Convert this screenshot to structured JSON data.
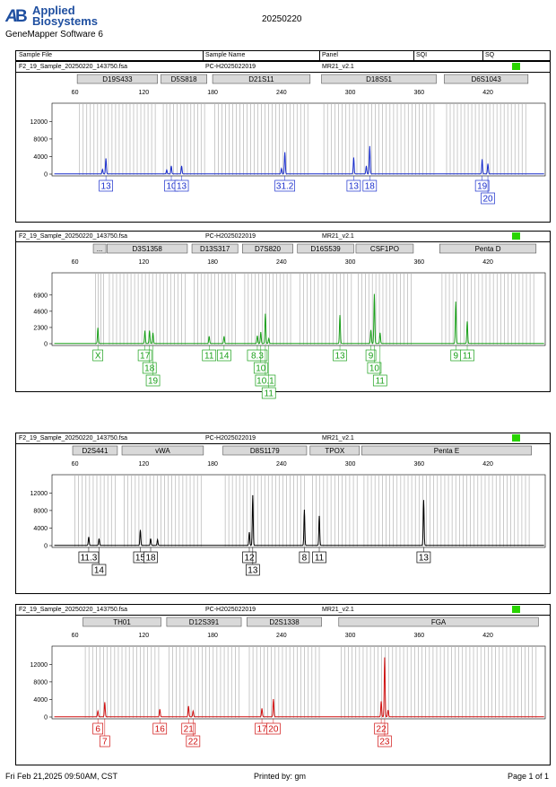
{
  "header": {
    "brand_line1": "Applied",
    "brand_line2": "Biosystems",
    "date": "20250220",
    "software": "GeneMapper Software 6"
  },
  "columns": {
    "sample_file": "Sample File",
    "sample_name": "Sample Name",
    "panel": "Panel",
    "sqi": "SQI",
    "sq": "SQ"
  },
  "footer": {
    "datetime": "Fri Feb 21,2025 09:50AM, CST",
    "printed_by": "Printed by: gm",
    "page": "Page 1 of 1"
  },
  "colors": {
    "blue": "#1a2ecc",
    "green": "#1aa01a",
    "black": "#000000",
    "red": "#d01010",
    "quality": "#29d400"
  },
  "chart_data": [
    {
      "type": "line",
      "dye": "blue",
      "sample_file": "F2_19_Sample_20250220_143750.fsa",
      "sample_name": "PC-H2025022019",
      "panel": "MR21_v2.1",
      "xlim": [
        40,
        470
      ],
      "xticks": [
        60,
        120,
        180,
        240,
        300,
        360,
        420
      ],
      "ylim": [
        0,
        13500
      ],
      "yticks": [
        0,
        4000,
        8000,
        12000
      ],
      "markers": [
        {
          "name": "D19S433",
          "x0": 62,
          "x1": 132
        },
        {
          "name": "D5S818",
          "x0": 135,
          "x1": 175
        },
        {
          "name": "D21S11",
          "x0": 180,
          "x1": 265
        },
        {
          "name": "D18S51",
          "x0": 275,
          "x1": 375
        },
        {
          "name": "D6S1043",
          "x0": 382,
          "x1": 455
        }
      ],
      "peaks": [
        {
          "x": 84,
          "h": 1000
        },
        {
          "x": 87,
          "h": 3500
        },
        {
          "x": 140,
          "h": 900
        },
        {
          "x": 144,
          "h": 1800
        },
        {
          "x": 153,
          "h": 1800
        },
        {
          "x": 240,
          "h": 1200
        },
        {
          "x": 243,
          "h": 4900
        },
        {
          "x": 303,
          "h": 3700
        },
        {
          "x": 314,
          "h": 1800
        },
        {
          "x": 317,
          "h": 6300
        },
        {
          "x": 415,
          "h": 3300
        },
        {
          "x": 420,
          "h": 2300
        }
      ],
      "alleles": [
        {
          "x": 87,
          "row": 0,
          "label": "13"
        },
        {
          "x": 144,
          "row": 0,
          "label": "10"
        },
        {
          "x": 153,
          "row": 0,
          "label": "13"
        },
        {
          "x": 243,
          "row": 0,
          "label": "31.2"
        },
        {
          "x": 303,
          "row": 0,
          "label": "13"
        },
        {
          "x": 317,
          "row": 0,
          "label": "18"
        },
        {
          "x": 415,
          "row": 0,
          "label": "19"
        },
        {
          "x": 420,
          "row": 1,
          "label": "20"
        }
      ]
    },
    {
      "type": "line",
      "dye": "green",
      "sample_file": "F2_19_Sample_20250220_143750.fsa",
      "sample_name": "PC-H2025022019",
      "panel": "MR21_v2.1",
      "xlim": [
        40,
        470
      ],
      "xticks": [
        60,
        120,
        180,
        240,
        300,
        360,
        420
      ],
      "ylim": [
        0,
        8400
      ],
      "yticks": [
        0,
        2300,
        4600,
        6900
      ],
      "markers": [
        {
          "name": "...",
          "x0": 76,
          "x1": 87
        },
        {
          "name": "D3S1358",
          "x0": 88,
          "x1": 158
        },
        {
          "name": "D13S317",
          "x0": 162,
          "x1": 202
        },
        {
          "name": "D7S820",
          "x0": 206,
          "x1": 250
        },
        {
          "name": "D16S539",
          "x0": 254,
          "x1": 303
        },
        {
          "name": "CSF1PO",
          "x0": 305,
          "x1": 355
        },
        {
          "name": "Penta D",
          "x0": 378,
          "x1": 462
        }
      ],
      "peaks": [
        {
          "x": 80,
          "h": 2200
        },
        {
          "x": 121,
          "h": 1800
        },
        {
          "x": 125,
          "h": 1800
        },
        {
          "x": 128,
          "h": 1500
        },
        {
          "x": 177,
          "h": 1000
        },
        {
          "x": 190,
          "h": 1000
        },
        {
          "x": 219,
          "h": 1100
        },
        {
          "x": 222,
          "h": 1600
        },
        {
          "x": 226,
          "h": 4200
        },
        {
          "x": 229,
          "h": 700
        },
        {
          "x": 291,
          "h": 4000
        },
        {
          "x": 318,
          "h": 1900
        },
        {
          "x": 321,
          "h": 7000
        },
        {
          "x": 326,
          "h": 1500
        },
        {
          "x": 392,
          "h": 5900
        },
        {
          "x": 402,
          "h": 3100
        }
      ],
      "alleles": [
        {
          "x": 80,
          "row": 0,
          "label": "X"
        },
        {
          "x": 121,
          "row": 0,
          "label": "17"
        },
        {
          "x": 125,
          "row": 1,
          "label": "18"
        },
        {
          "x": 128,
          "row": 2,
          "label": "19"
        },
        {
          "x": 177,
          "row": 0,
          "label": "11"
        },
        {
          "x": 190,
          "row": 0,
          "label": "14"
        },
        {
          "x": 219,
          "row": 0,
          "label": "8.3"
        },
        {
          "x": 222,
          "row": 1,
          "label": "10"
        },
        {
          "x": 226,
          "row": 2,
          "label": "10.1"
        },
        {
          "x": 229,
          "row": 3,
          "label": "11"
        },
        {
          "x": 291,
          "row": 0,
          "label": "13"
        },
        {
          "x": 318,
          "row": 0,
          "label": "9"
        },
        {
          "x": 321,
          "row": 1,
          "label": "10"
        },
        {
          "x": 326,
          "row": 2,
          "label": "11"
        },
        {
          "x": 392,
          "row": 0,
          "label": "9"
        },
        {
          "x": 402,
          "row": 0,
          "label": "11"
        }
      ]
    },
    {
      "type": "line",
      "dye": "black",
      "sample_file": "F2_19_Sample_20250220_143750.fsa",
      "sample_name": "PC-H2025022019",
      "panel": "MR21_v2.1",
      "xlim": [
        40,
        470
      ],
      "xticks": [
        60,
        120,
        180,
        240,
        300,
        360,
        420
      ],
      "ylim": [
        0,
        13500
      ],
      "yticks": [
        0,
        4000,
        8000,
        12000
      ],
      "markers": [
        {
          "name": "D2S441",
          "x0": 58,
          "x1": 97
        },
        {
          "name": "vWA",
          "x0": 101,
          "x1": 172
        },
        {
          "name": "D8S1179",
          "x0": 189,
          "x1": 262
        },
        {
          "name": "TPOX",
          "x0": 265,
          "x1": 308
        },
        {
          "name": "Penta E",
          "x0": 310,
          "x1": 458
        }
      ],
      "peaks": [
        {
          "x": 72,
          "h": 1900
        },
        {
          "x": 81,
          "h": 1500
        },
        {
          "x": 117,
          "h": 3500
        },
        {
          "x": 126,
          "h": 1500
        },
        {
          "x": 132,
          "h": 1300
        },
        {
          "x": 212,
          "h": 3000
        },
        {
          "x": 215,
          "h": 11400
        },
        {
          "x": 260,
          "h": 8100
        },
        {
          "x": 273,
          "h": 6700
        },
        {
          "x": 364,
          "h": 10300
        }
      ],
      "alleles": [
        {
          "x": 72,
          "row": 0,
          "label": "11.3"
        },
        {
          "x": 81,
          "row": 1,
          "label": "14"
        },
        {
          "x": 117,
          "row": 0,
          "label": "15"
        },
        {
          "x": 126,
          "row": 0,
          "label": "18"
        },
        {
          "x": 212,
          "row": 0,
          "label": "12"
        },
        {
          "x": 215,
          "row": 1,
          "label": "13"
        },
        {
          "x": 260,
          "row": 0,
          "label": "8"
        },
        {
          "x": 273,
          "row": 0,
          "label": "11"
        },
        {
          "x": 364,
          "row": 0,
          "label": "13"
        }
      ]
    },
    {
      "type": "line",
      "dye": "red",
      "sample_file": "F2_19_Sample_20250220_143750.fsa",
      "sample_name": "PC-H2025022019",
      "panel": "MR21_v2.1",
      "xlim": [
        40,
        470
      ],
      "xticks": [
        60,
        120,
        180,
        240,
        300,
        360,
        420
      ],
      "ylim": [
        0,
        13500
      ],
      "yticks": [
        0,
        4000,
        8000,
        12000
      ],
      "markers": [
        {
          "name": "TH01",
          "x0": 67,
          "x1": 135
        },
        {
          "name": "D12S391",
          "x0": 140,
          "x1": 205
        },
        {
          "name": "D2S1338",
          "x0": 210,
          "x1": 275
        },
        {
          "name": "FGA",
          "x0": 290,
          "x1": 464
        }
      ],
      "peaks": [
        {
          "x": 80,
          "h": 1300
        },
        {
          "x": 86,
          "h": 3300
        },
        {
          "x": 134,
          "h": 1700
        },
        {
          "x": 159,
          "h": 2400
        },
        {
          "x": 163,
          "h": 1300
        },
        {
          "x": 223,
          "h": 1900
        },
        {
          "x": 233,
          "h": 4000
        },
        {
          "x": 327,
          "h": 3500
        },
        {
          "x": 330,
          "h": 13500
        },
        {
          "x": 333,
          "h": 1500
        }
      ],
      "alleles": [
        {
          "x": 80,
          "row": 0,
          "label": "6"
        },
        {
          "x": 86,
          "row": 1,
          "label": "7"
        },
        {
          "x": 134,
          "row": 0,
          "label": "16"
        },
        {
          "x": 159,
          "row": 0,
          "label": "21"
        },
        {
          "x": 163,
          "row": 1,
          "label": "22"
        },
        {
          "x": 223,
          "row": 0,
          "label": "17"
        },
        {
          "x": 233,
          "row": 0,
          "label": "20"
        },
        {
          "x": 327,
          "row": 0,
          "label": "22"
        },
        {
          "x": 330,
          "row": 1,
          "label": "23"
        }
      ]
    }
  ]
}
